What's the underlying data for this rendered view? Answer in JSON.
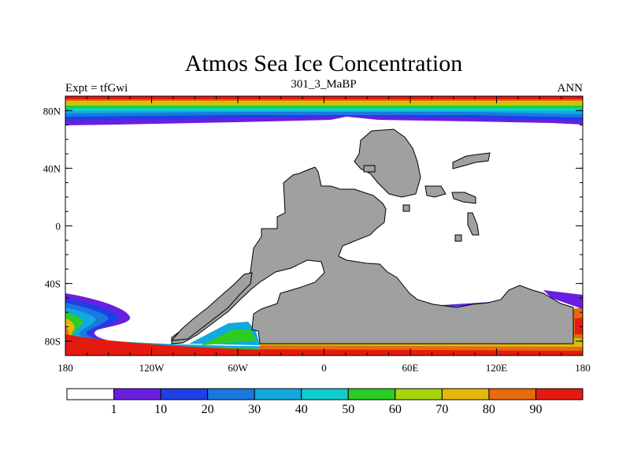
{
  "title": "Atmos Sea Ice Concentration",
  "left_string": "Expt = tfGwi",
  "center_string": "301_3_MaBP",
  "right_string": "ANN",
  "map": {
    "projection": "cylindrical-equidistant",
    "lon_range": [
      -180,
      180
    ],
    "lat_range": [
      -90,
      90
    ],
    "land_color": "#a0a0a0",
    "ocean_color": "#ffffff"
  },
  "lat_ticks": [
    {
      "value": 80,
      "label": "80N"
    },
    {
      "value": 40,
      "label": "40N"
    },
    {
      "value": 0,
      "label": "0"
    },
    {
      "value": -40,
      "label": "40S"
    },
    {
      "value": -80,
      "label": "80S"
    }
  ],
  "lon_ticks": [
    {
      "value": -180,
      "label": "180"
    },
    {
      "value": -120,
      "label": "120W"
    },
    {
      "value": -60,
      "label": "60W"
    },
    {
      "value": 0,
      "label": "0"
    },
    {
      "value": 60,
      "label": "60E"
    },
    {
      "value": 120,
      "label": "120E"
    },
    {
      "value": 180,
      "label": "180"
    }
  ],
  "colorbar": {
    "levels": [
      "1",
      "10",
      "20",
      "30",
      "40",
      "50",
      "60",
      "70",
      "80",
      "90"
    ],
    "colors": [
      "#ffffff",
      "#6a1fe0",
      "#1f3fe6",
      "#1a78e0",
      "#12a8e0",
      "#10cccc",
      "#2ccc24",
      "#a8d40c",
      "#e4b80a",
      "#e86a0a",
      "#e41a10"
    ]
  }
}
